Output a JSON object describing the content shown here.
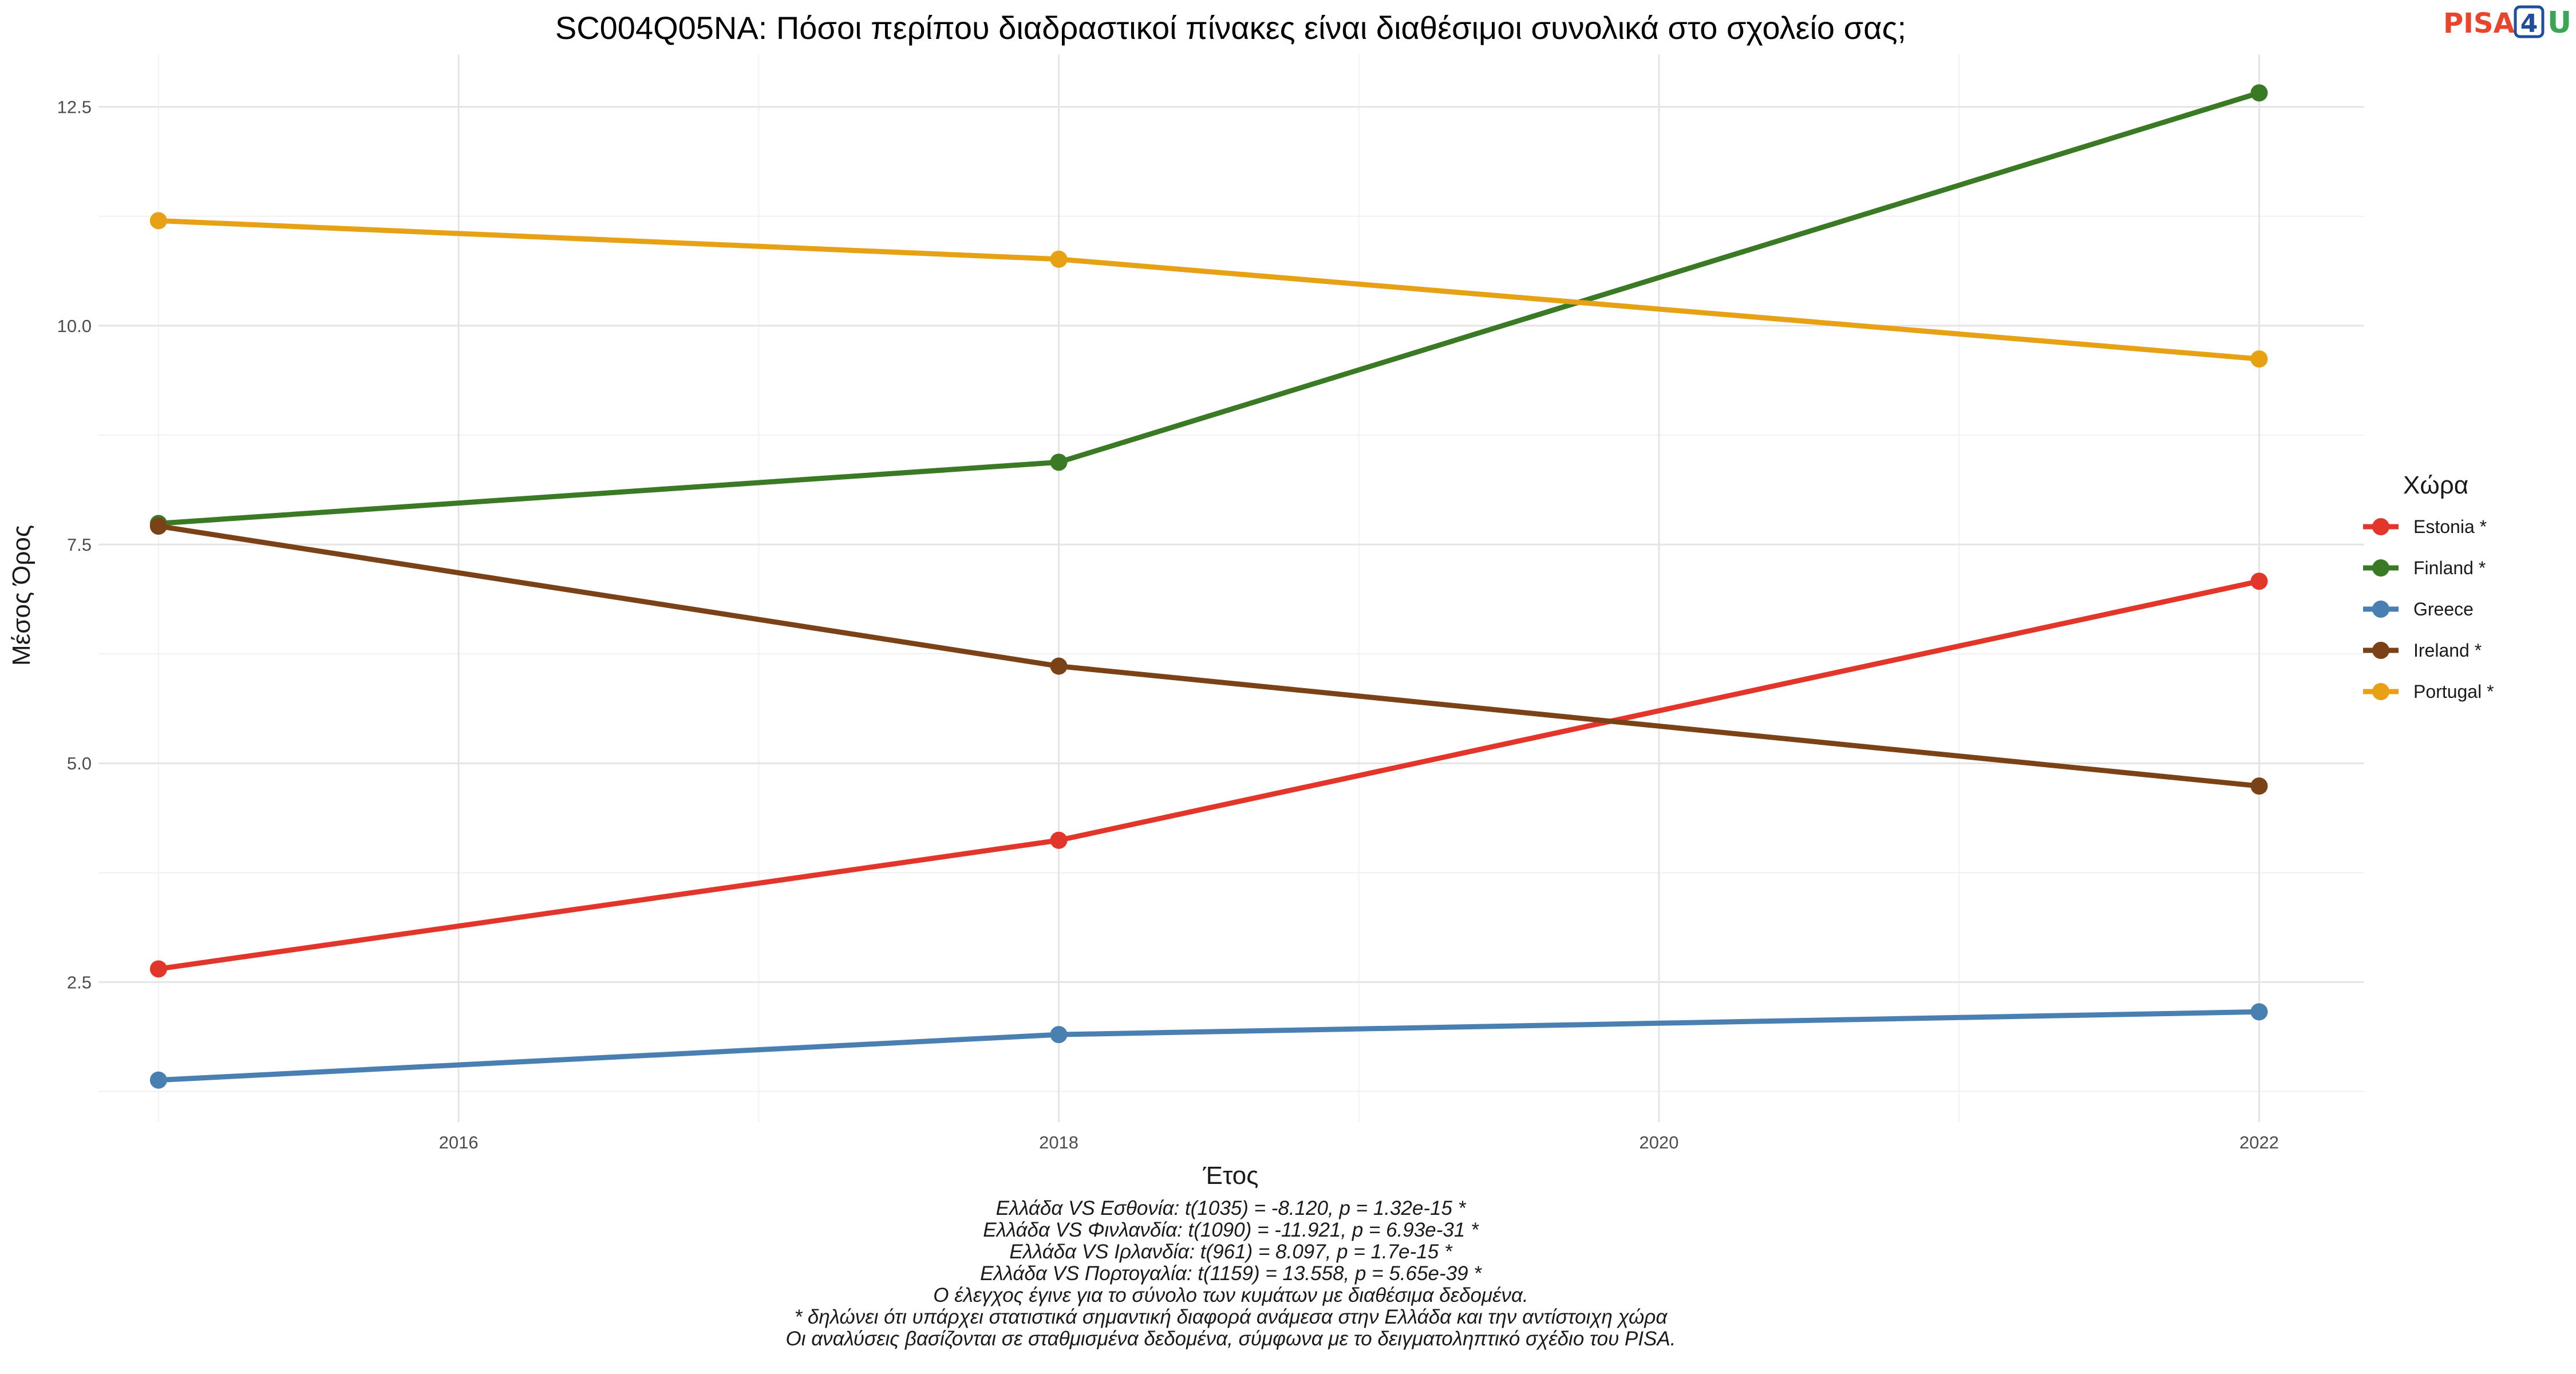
{
  "logo": {
    "text_left": "PISA",
    "text_box": "4",
    "text_right": "U",
    "colors": {
      "left": "#e8452c",
      "box": "#1f4e9c",
      "right": "#3aa655"
    }
  },
  "chart_data": {
    "type": "line",
    "title": "SC004Q05NA: Πόσοι περίπου διαδραστικοί πίνακες είναι διαθέσιμοι συνολικά στο σχολείο σας;",
    "xlabel": "Έτος",
    "ylabel": "Μέσος Όρος",
    "xlim": [
      2014.8,
      2022.35
    ],
    "ylim": [
      0.9,
      13.1
    ],
    "x_ticks": [
      2016,
      2018,
      2020,
      2022
    ],
    "x_tick_labels": [
      "2016",
      "2018",
      "2020",
      "2022"
    ],
    "y_ticks": [
      2.5,
      5.0,
      7.5,
      10.0,
      12.5
    ],
    "y_tick_labels": [
      "2.5",
      "5.0",
      "7.5",
      "10.0",
      "12.5"
    ],
    "grid": true,
    "legend": {
      "title": "Χώρα",
      "position": "right"
    },
    "x": [
      2015,
      2018,
      2022
    ],
    "series": [
      {
        "name": "Estonia *",
        "color": "#e3362b",
        "values": [
          2.65,
          4.12,
          7.08
        ]
      },
      {
        "name": "Finland *",
        "color": "#3a7a25",
        "values": [
          7.74,
          8.44,
          12.66
        ]
      },
      {
        "name": "Greece",
        "color": "#4a7fb2",
        "values": [
          1.38,
          1.9,
          2.16
        ]
      },
      {
        "name": "Ireland *",
        "color": "#7a4216",
        "values": [
          7.71,
          6.11,
          4.74
        ]
      },
      {
        "name": "Portugal *",
        "color": "#e7a114",
        "values": [
          11.2,
          10.76,
          9.62
        ]
      }
    ],
    "caption": [
      "Ελλάδα VS Εσθονία: t(1035) = -8.120, p = 1.32e-15 *",
      "Ελλάδα VS Φινλανδία: t(1090) = -11.921, p = 6.93e-31 *",
      "Ελλάδα VS Ιρλανδία: t(961) = 8.097, p = 1.7e-15 *",
      "Ελλάδα VS Πορτογαλία: t(1159) = 13.558, p = 5.65e-39 *",
      "Ο έλεγχος έγινε για το σύνολο των κυμάτων με διαθέσιμα δεδομένα.",
      "* δηλώνει ότι υπάρχει στατιστικά σημαντική διαφορά ανάμεσα στην Ελλάδα και την αντίστοιχη χώρα",
      "Οι αναλύσεις βασίζονται σε σταθμισμένα δεδομένα, σύμφωνα με το δειγματοληπτικό σχέδιο του PISA."
    ]
  }
}
